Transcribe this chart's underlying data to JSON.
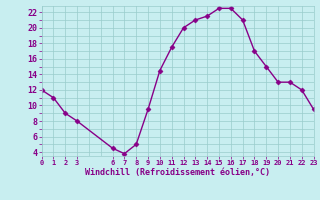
{
  "x": [
    0,
    1,
    2,
    3,
    6,
    7,
    8,
    9,
    10,
    11,
    12,
    13,
    14,
    15,
    16,
    17,
    18,
    19,
    20,
    21,
    22,
    23
  ],
  "y": [
    12,
    11,
    9,
    8,
    4.5,
    3.8,
    5,
    9.5,
    14.5,
    17.5,
    20,
    21,
    21.5,
    22.5,
    22.5,
    21,
    17,
    15,
    13,
    13,
    12,
    9.5
  ],
  "line_color": "#880088",
  "marker": "D",
  "marker_size": 2.5,
  "bg_color": "#c8eef0",
  "grid_color": "#99cccc",
  "xlabel": "Windchill (Refroidissement éolien,°C)",
  "xlabel_color": "#880088",
  "yticks": [
    4,
    6,
    8,
    10,
    12,
    14,
    16,
    18,
    20,
    22
  ],
  "xtick_positions": [
    0,
    1,
    2,
    3,
    6,
    7,
    8,
    9,
    10,
    11,
    12,
    13,
    14,
    15,
    16,
    17,
    18,
    19,
    20,
    21,
    22,
    23
  ],
  "xtick_labels": [
    "0",
    "1",
    "2",
    "3",
    "6",
    "7",
    "8",
    "9",
    "10",
    "11",
    "12",
    "13",
    "14",
    "15",
    "16",
    "17",
    "18",
    "19",
    "20",
    "21",
    "22",
    "23"
  ],
  "xlim": [
    0,
    23
  ],
  "ylim": [
    3.5,
    22.8
  ]
}
